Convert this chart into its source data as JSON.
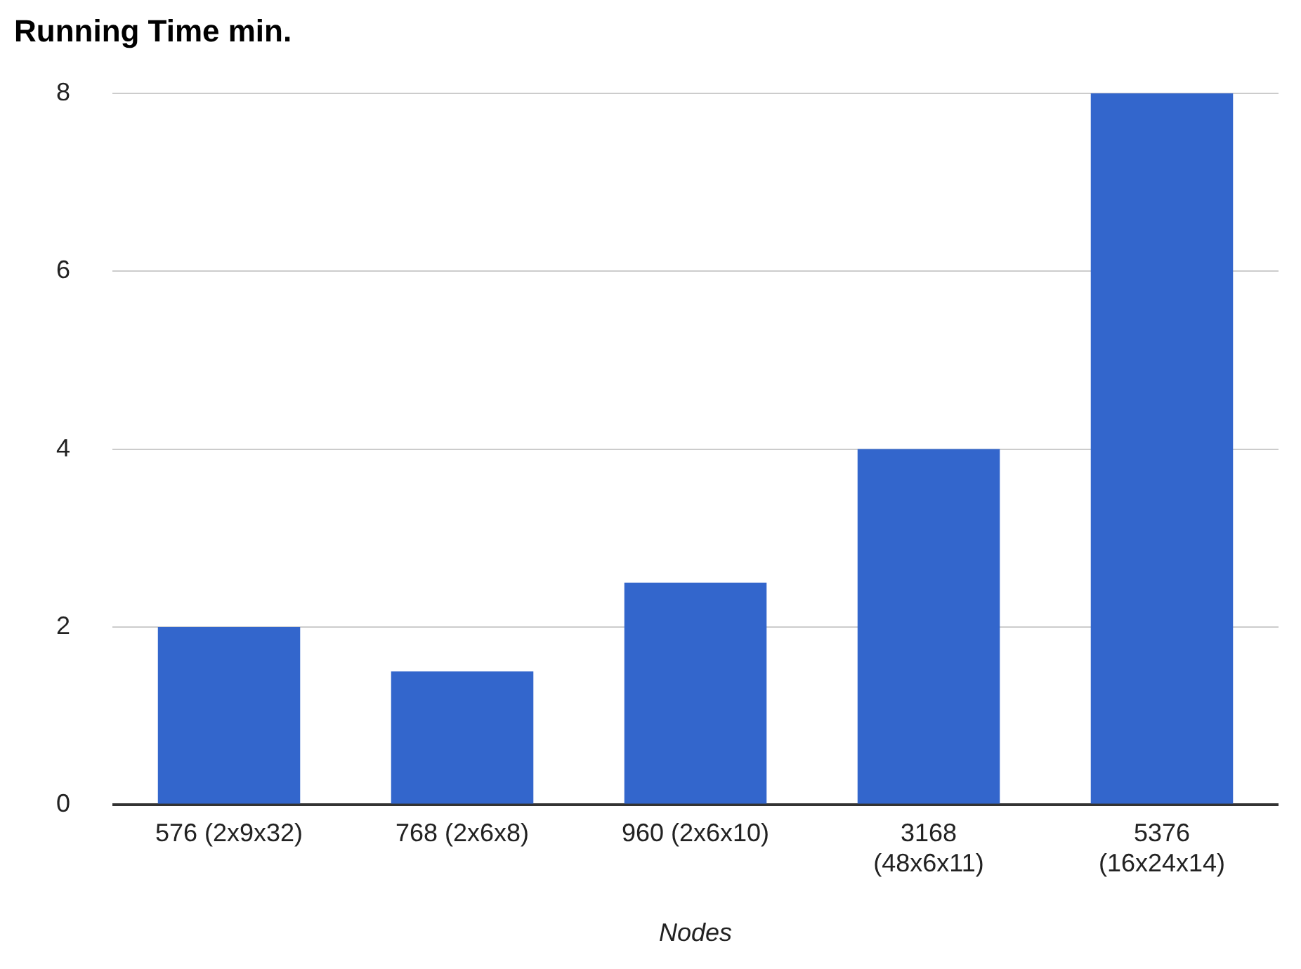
{
  "chart_data": {
    "type": "bar",
    "title": "Running Time min.",
    "xlabel": "Nodes",
    "categories": [
      "576 (2x9x32)",
      "768 (2x6x8)",
      "960 (2x6x10)",
      "3168 (48x6x11)",
      "5376 (16x24x14)"
    ],
    "values": [
      2,
      1.5,
      2.5,
      4,
      8
    ],
    "color": "#3366cc",
    "ylim": [
      0,
      8
    ],
    "yticks": [
      0,
      2,
      4,
      6,
      8
    ],
    "grid": "y",
    "legend": false
  }
}
